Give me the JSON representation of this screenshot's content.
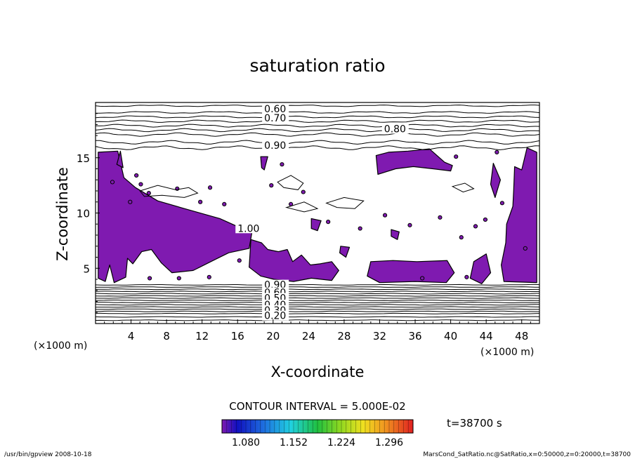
{
  "chart_data": {
    "type": "contour",
    "title": "saturation ratio",
    "xlabel": "X-coordinate",
    "ylabel": "Z-coordinate",
    "x_unit": "(×1000 m)",
    "y_unit": "(×1000 m)",
    "xlim": [
      0,
      50
    ],
    "ylim": [
      0,
      20
    ],
    "xticks": [
      4,
      8,
      12,
      16,
      20,
      24,
      28,
      32,
      36,
      40,
      44,
      48
    ],
    "yticks": [
      5,
      10,
      15
    ],
    "contour_labels": [
      {
        "text": "0.60",
        "x": 19.0,
        "z": 19.1
      },
      {
        "text": "0.70",
        "x": 19.0,
        "z": 18.3
      },
      {
        "text": "0.80",
        "x": 32.5,
        "z": 17.3
      },
      {
        "text": "0.90",
        "x": 19.0,
        "z": 15.8
      },
      {
        "text": "1.00",
        "x": 16.0,
        "z": 8.3
      },
      {
        "text": "0.90",
        "x": 19.0,
        "z": 3.2
      },
      {
        "text": "0.60",
        "x": 19.0,
        "z": 2.5
      },
      {
        "text": "0.50",
        "x": 19.0,
        "z": 2.0
      },
      {
        "text": "0.40",
        "x": 19.0,
        "z": 1.4
      },
      {
        "text": "0.30",
        "x": 19.0,
        "z": 0.9
      },
      {
        "text": "0.20",
        "x": 19.0,
        "z": 0.4
      }
    ],
    "upper_contours_z": [
      19.7,
      19.1,
      18.7,
      18.3,
      17.9,
      17.5,
      17.1,
      16.4,
      15.9
    ],
    "lower_contours_z": [
      3.5,
      3.3,
      3.1,
      2.9,
      2.7,
      2.5,
      2.3,
      2.1,
      1.9,
      1.7,
      1.5,
      1.3,
      1.1,
      0.9,
      0.6,
      0.3
    ],
    "contour_interval": "CONTOUR INTERVAL = 5.000E-02",
    "colorbar": {
      "min": 1.044,
      "max": 1.332,
      "ticks": [
        "1.080",
        "1.152",
        "1.224",
        "1.296"
      ],
      "fill_color": "#7F1AB0"
    },
    "time_label": "t=38700 s"
  },
  "footer": {
    "left": "/usr/bin/gpview   2008-10-18",
    "right": "MarsCond_SatRatio.nc@SatRatio,x=0:50000,z=0:20000,t=38700"
  }
}
